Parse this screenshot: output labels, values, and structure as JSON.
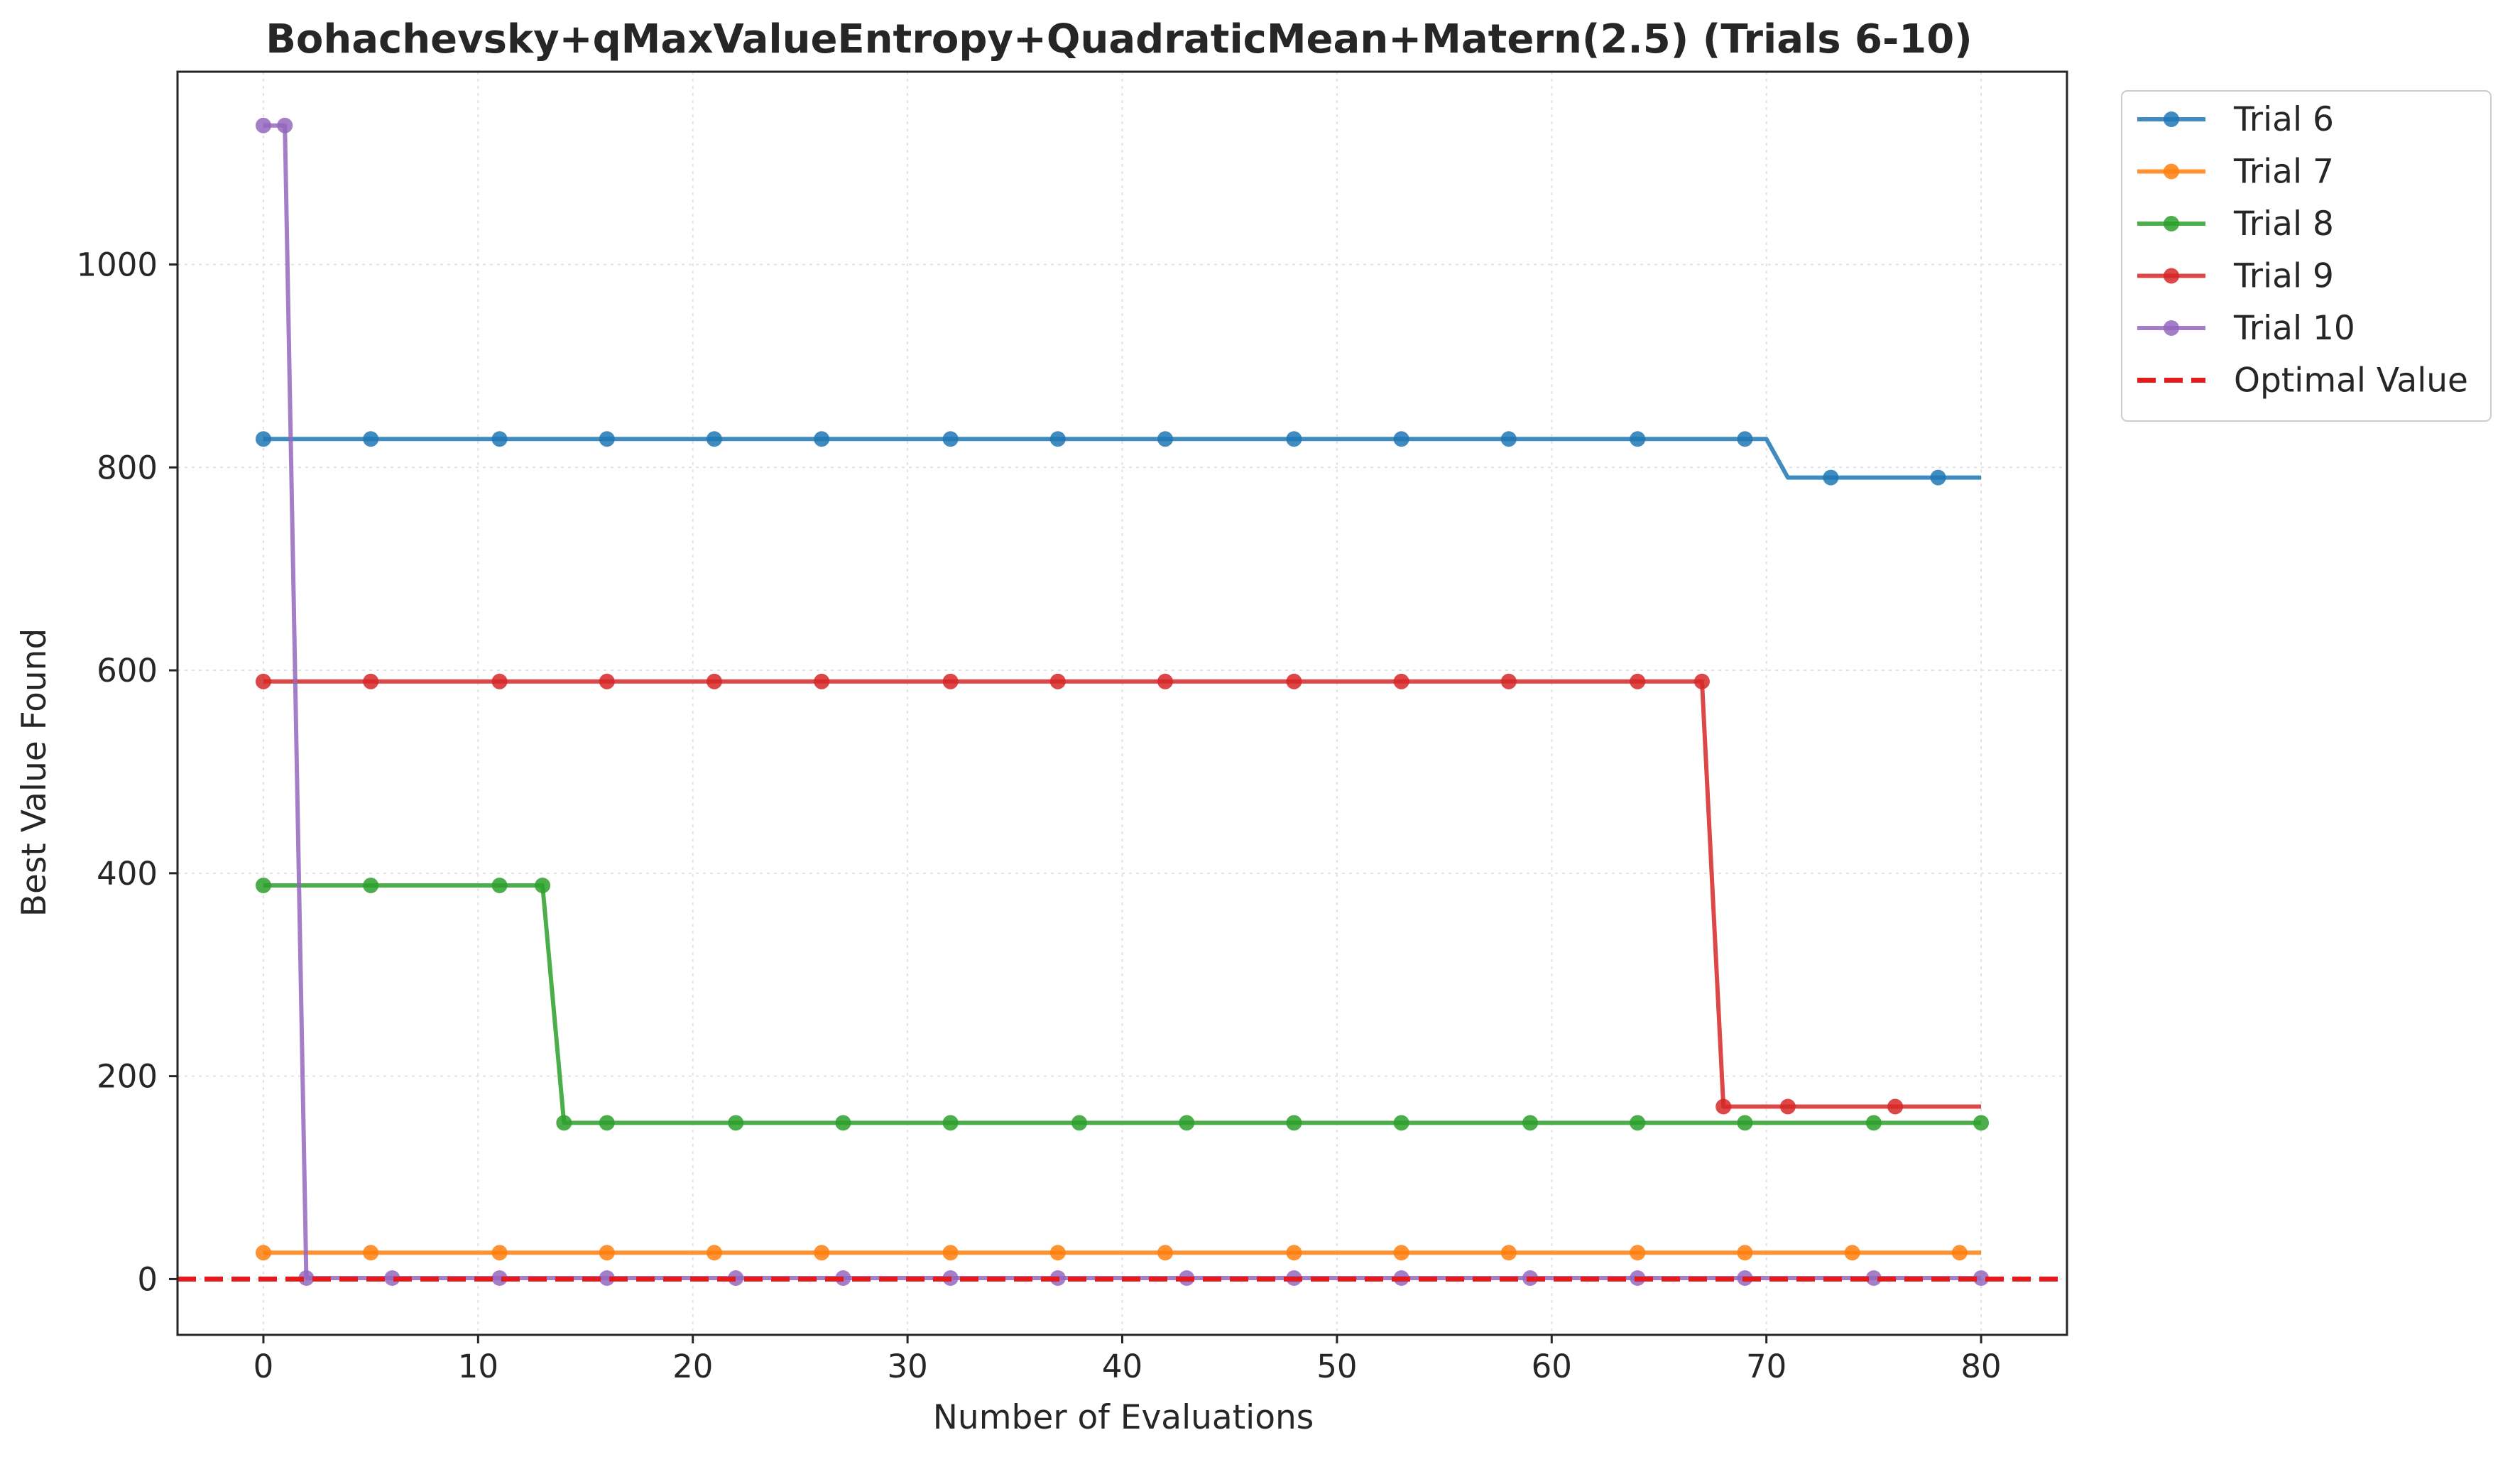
{
  "chart_data": {
    "type": "line",
    "title": "Bohachevsky+qMaxValueEntropy+QuadraticMean+Matern(2.5) (Trials 6-10)",
    "xlabel": "Number of Evaluations",
    "ylabel": "Best Value Found",
    "xlim": [
      -4,
      84
    ],
    "ylim": [
      -55,
      1190
    ],
    "xticks": [
      0,
      10,
      20,
      30,
      40,
      50,
      60,
      70,
      80
    ],
    "yticks": [
      0,
      200,
      400,
      600,
      800,
      1000
    ],
    "grid": true,
    "legend_position": "upper-right-outside",
    "series": [
      {
        "name": "Trial 6",
        "color": "#1f77b4",
        "x": [
          0,
          1,
          2,
          3,
          4,
          5,
          6,
          7,
          8,
          9,
          10,
          11,
          12,
          13,
          14,
          15,
          16,
          17,
          18,
          19,
          20,
          21,
          22,
          23,
          24,
          25,
          26,
          27,
          28,
          29,
          30,
          31,
          32,
          33,
          34,
          35,
          36,
          37,
          38,
          39,
          40,
          41,
          42,
          43,
          44,
          45,
          46,
          47,
          48,
          49,
          50,
          51,
          52,
          53,
          54,
          55,
          56,
          57,
          58,
          59,
          60,
          61,
          62,
          63,
          64,
          65,
          66,
          67,
          68,
          69,
          70,
          71,
          72,
          73,
          74,
          75,
          76,
          77,
          78,
          79,
          80
        ],
        "y": [
          828,
          828,
          828,
          828,
          828,
          828,
          828,
          828,
          828,
          828,
          828,
          828,
          828,
          828,
          828,
          828,
          828,
          828,
          828,
          828,
          828,
          828,
          828,
          828,
          828,
          828,
          828,
          828,
          828,
          828,
          828,
          828,
          828,
          828,
          828,
          828,
          828,
          828,
          828,
          828,
          828,
          828,
          828,
          828,
          828,
          828,
          828,
          828,
          828,
          828,
          828,
          828,
          828,
          828,
          828,
          828,
          828,
          828,
          828,
          828,
          828,
          828,
          828,
          828,
          828,
          828,
          828,
          828,
          828,
          828,
          828,
          790,
          790,
          790,
          790,
          790,
          790,
          790,
          790,
          790,
          790
        ],
        "markers": [
          0,
          5,
          11,
          16,
          21,
          26,
          32,
          37,
          42,
          48,
          53,
          58,
          64,
          69,
          73,
          78
        ]
      },
      {
        "name": "Trial 7",
        "color": "#ff7f0e",
        "x": [
          0,
          1,
          2,
          3,
          4,
          5,
          6,
          7,
          8,
          9,
          10,
          11,
          12,
          13,
          14,
          15,
          16,
          17,
          18,
          19,
          20,
          21,
          22,
          23,
          24,
          25,
          26,
          27,
          28,
          29,
          30,
          31,
          32,
          33,
          34,
          35,
          36,
          37,
          38,
          39,
          40,
          41,
          42,
          43,
          44,
          45,
          46,
          47,
          48,
          49,
          50,
          51,
          52,
          53,
          54,
          55,
          56,
          57,
          58,
          59,
          60,
          61,
          62,
          63,
          64,
          65,
          66,
          67,
          68,
          69,
          70,
          71,
          72,
          73,
          74,
          75,
          76,
          77,
          78,
          79,
          80
        ],
        "y": [
          26,
          26,
          26,
          26,
          26,
          26,
          26,
          26,
          26,
          26,
          26,
          26,
          26,
          26,
          26,
          26,
          26,
          26,
          26,
          26,
          26,
          26,
          26,
          26,
          26,
          26,
          26,
          26,
          26,
          26,
          26,
          26,
          26,
          26,
          26,
          26,
          26,
          26,
          26,
          26,
          26,
          26,
          26,
          26,
          26,
          26,
          26,
          26,
          26,
          26,
          26,
          26,
          26,
          26,
          26,
          26,
          26,
          26,
          26,
          26,
          26,
          26,
          26,
          26,
          26,
          26,
          26,
          26,
          26,
          26,
          26,
          26,
          26,
          26,
          26,
          26,
          26,
          26,
          26,
          26,
          26
        ],
        "markers": [
          0,
          5,
          11,
          16,
          21,
          26,
          32,
          37,
          42,
          48,
          53,
          58,
          64,
          69,
          74,
          79
        ]
      },
      {
        "name": "Trial 8",
        "color": "#2ca02c",
        "x": [
          0,
          1,
          2,
          3,
          4,
          5,
          6,
          7,
          8,
          9,
          10,
          11,
          12,
          13,
          14,
          15,
          16,
          17,
          18,
          19,
          20,
          21,
          22,
          23,
          24,
          25,
          26,
          27,
          28,
          29,
          30,
          31,
          32,
          33,
          34,
          35,
          36,
          37,
          38,
          39,
          40,
          41,
          42,
          43,
          44,
          45,
          46,
          47,
          48,
          49,
          50,
          51,
          52,
          53,
          54,
          55,
          56,
          57,
          58,
          59,
          60,
          61,
          62,
          63,
          64,
          65,
          66,
          67,
          68,
          69,
          70,
          71,
          72,
          73,
          74,
          75,
          76,
          77,
          78,
          79,
          80
        ],
        "y": [
          388,
          388,
          388,
          388,
          388,
          388,
          388,
          388,
          388,
          388,
          388,
          388,
          388,
          388,
          154,
          154,
          154,
          154,
          154,
          154,
          154,
          154,
          154,
          154,
          154,
          154,
          154,
          154,
          154,
          154,
          154,
          154,
          154,
          154,
          154,
          154,
          154,
          154,
          154,
          154,
          154,
          154,
          154,
          154,
          154,
          154,
          154,
          154,
          154,
          154,
          154,
          154,
          154,
          154,
          154,
          154,
          154,
          154,
          154,
          154,
          154,
          154,
          154,
          154,
          154,
          154,
          154,
          154,
          154,
          154,
          154,
          154,
          154,
          154,
          154,
          154,
          154,
          154,
          154,
          154,
          154
        ],
        "markers": [
          0,
          5,
          11,
          13,
          14,
          16,
          22,
          27,
          32,
          38,
          43,
          48,
          53,
          59,
          64,
          69,
          75,
          80
        ]
      },
      {
        "name": "Trial 9",
        "color": "#d62728",
        "x": [
          0,
          1,
          2,
          3,
          4,
          5,
          6,
          7,
          8,
          9,
          10,
          11,
          12,
          13,
          14,
          15,
          16,
          17,
          18,
          19,
          20,
          21,
          22,
          23,
          24,
          25,
          26,
          27,
          28,
          29,
          30,
          31,
          32,
          33,
          34,
          35,
          36,
          37,
          38,
          39,
          40,
          41,
          42,
          43,
          44,
          45,
          46,
          47,
          48,
          49,
          50,
          51,
          52,
          53,
          54,
          55,
          56,
          57,
          58,
          59,
          60,
          61,
          62,
          63,
          64,
          65,
          66,
          67,
          68,
          69,
          70,
          71,
          72,
          73,
          74,
          75,
          76,
          77,
          78,
          79,
          80
        ],
        "y": [
          589,
          589,
          589,
          589,
          589,
          589,
          589,
          589,
          589,
          589,
          589,
          589,
          589,
          589,
          589,
          589,
          589,
          589,
          589,
          589,
          589,
          589,
          589,
          589,
          589,
          589,
          589,
          589,
          589,
          589,
          589,
          589,
          589,
          589,
          589,
          589,
          589,
          589,
          589,
          589,
          589,
          589,
          589,
          589,
          589,
          589,
          589,
          589,
          589,
          589,
          589,
          589,
          589,
          589,
          589,
          589,
          589,
          589,
          589,
          589,
          589,
          589,
          589,
          589,
          589,
          589,
          589,
          589,
          170,
          170,
          170,
          170,
          170,
          170,
          170,
          170,
          170,
          170,
          170,
          170,
          170
        ],
        "markers": [
          0,
          5,
          11,
          16,
          21,
          26,
          32,
          37,
          42,
          48,
          53,
          58,
          64,
          67,
          68,
          71,
          76
        ]
      },
      {
        "name": "Trial 10",
        "color": "#9467bd",
        "x": [
          0,
          1,
          2,
          3,
          4,
          5,
          6,
          7,
          8,
          9,
          10,
          11,
          12,
          13,
          14,
          15,
          16,
          17,
          18,
          19,
          20,
          21,
          22,
          23,
          24,
          25,
          26,
          27,
          28,
          29,
          30,
          31,
          32,
          33,
          34,
          35,
          36,
          37,
          38,
          39,
          40,
          41,
          42,
          43,
          44,
          45,
          46,
          47,
          48,
          49,
          50,
          51,
          52,
          53,
          54,
          55,
          56,
          57,
          58,
          59,
          60,
          61,
          62,
          63,
          64,
          65,
          66,
          67,
          68,
          69,
          70,
          71,
          72,
          73,
          74,
          75,
          76,
          77,
          78,
          79,
          80
        ],
        "y": [
          1137,
          1137,
          1,
          1,
          1,
          1,
          1,
          1,
          1,
          1,
          1,
          1,
          1,
          1,
          1,
          1,
          1,
          1,
          1,
          1,
          1,
          1,
          1,
          1,
          1,
          1,
          1,
          1,
          1,
          1,
          1,
          1,
          1,
          1,
          1,
          1,
          1,
          1,
          1,
          1,
          1,
          1,
          1,
          1,
          1,
          1,
          1,
          1,
          1,
          1,
          1,
          1,
          1,
          1,
          1,
          1,
          1,
          1,
          1,
          1,
          1,
          1,
          1,
          1,
          1,
          1,
          1,
          1,
          1,
          1,
          1,
          1,
          1,
          1,
          1,
          1,
          1,
          1,
          1,
          1,
          1
        ],
        "markers": [
          0,
          1,
          2,
          6,
          11,
          16,
          22,
          27,
          32,
          37,
          43,
          48,
          53,
          59,
          64,
          69,
          75,
          80
        ]
      }
    ],
    "reference_line": {
      "name": "Optimal Value",
      "y": 0,
      "color": "#e41a1c",
      "style": "dashed"
    }
  }
}
